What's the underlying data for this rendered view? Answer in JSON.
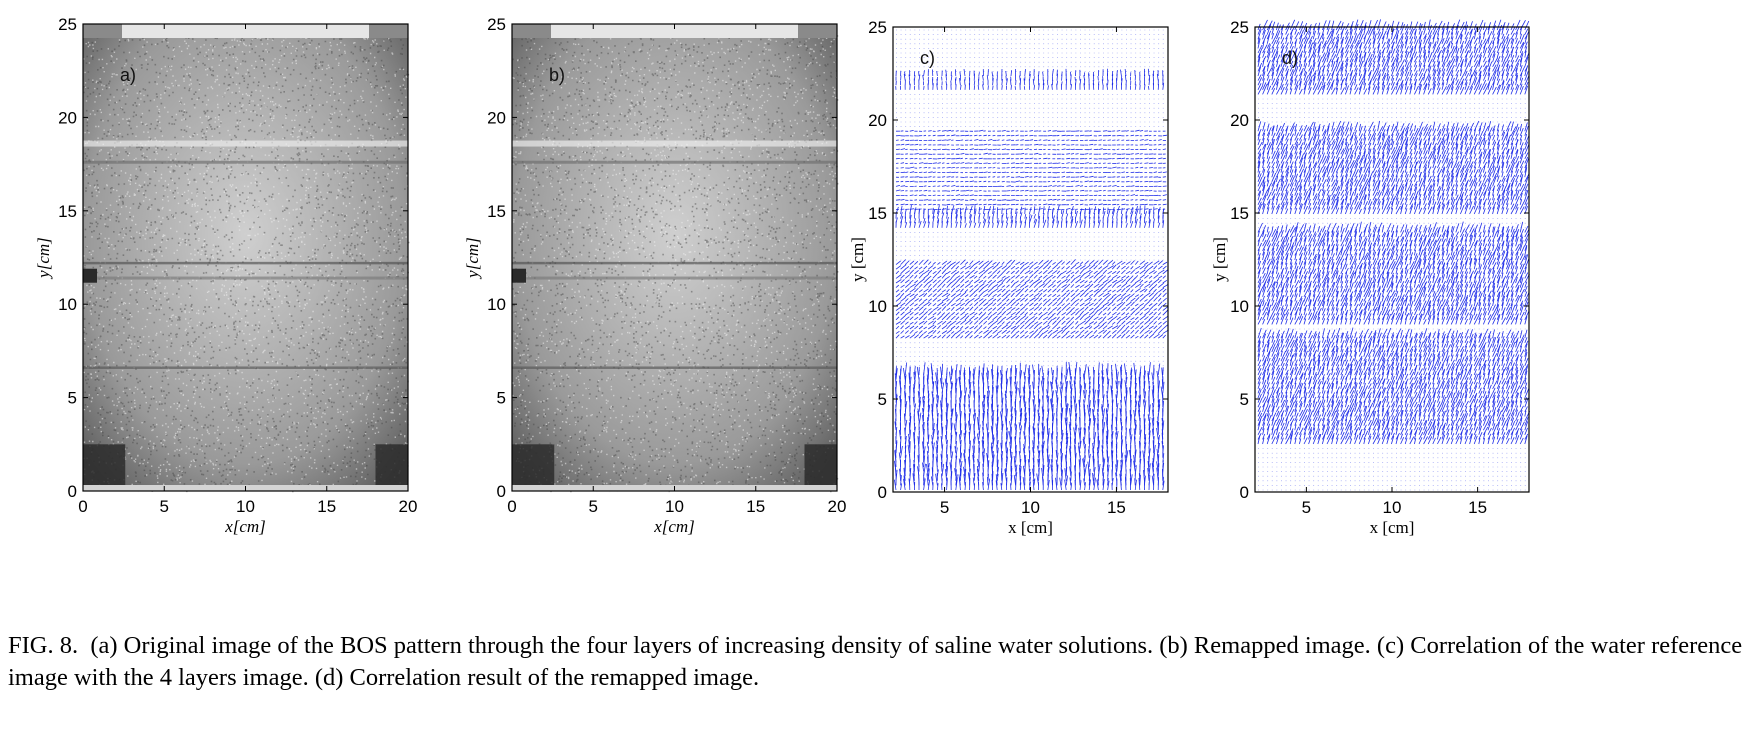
{
  "figure_label": "FIG. 8.",
  "caption_text": "(a) Original image of the BOS pattern through the four layers of increasing density of saline water solutions. (b) Remapped image. (c) Correlation of the water reference image with the 4 layers image. (d) Correlation result of the remapped image.",
  "colors": {
    "vector": "#1f2de8",
    "frame": "#000000"
  },
  "chart_data": [
    {
      "type": "image",
      "panel_label": "a)",
      "xlabel": "x[cm]",
      "ylabel": "y[cm]",
      "xlim": [
        0,
        20
      ],
      "ylim": [
        0,
        25
      ],
      "xticks": [
        "0",
        "5",
        "10",
        "15",
        "20"
      ],
      "yticks": [
        "0",
        "5",
        "10",
        "15",
        "20",
        "25"
      ]
    },
    {
      "type": "image",
      "panel_label": "b)",
      "xlabel": "x[cm]",
      "ylabel": "y[cm]",
      "xlim": [
        0,
        20
      ],
      "ylim": [
        0,
        25
      ],
      "xticks": [
        "0",
        "5",
        "10",
        "15",
        "20"
      ],
      "yticks": [
        "0",
        "5",
        "10",
        "15",
        "20",
        "25"
      ]
    },
    {
      "type": "quiver",
      "panel_label": "c)",
      "xlabel": "x [cm]",
      "ylabel": "y [cm]",
      "xlim": [
        2,
        18
      ],
      "ylim": [
        0,
        25
      ],
      "xticks": [
        "5",
        "10",
        "15"
      ],
      "yticks": [
        "0",
        "5",
        "10",
        "15",
        "20",
        "25"
      ],
      "bands": [
        {
          "y": [
            0,
            6.3
          ],
          "strength": 1.0,
          "angle_deg": 90
        },
        {
          "y": [
            8.2,
            12.4
          ],
          "strength": 0.55,
          "angle_deg": 40
        },
        {
          "y": [
            14.1,
            15.0
          ],
          "strength": 0.7,
          "angle_deg": 80
        },
        {
          "y": [
            15.0,
            19.5
          ],
          "strength": 0.35,
          "angle_deg": 5
        },
        {
          "y": [
            21.4,
            22.4
          ],
          "strength": 0.55,
          "angle_deg": 90
        }
      ]
    },
    {
      "type": "quiver",
      "panel_label": "d)",
      "xlabel": "x [cm]",
      "ylabel": "y [cm]",
      "xlim": [
        2,
        18
      ],
      "ylim": [
        0,
        25
      ],
      "xticks": [
        "5",
        "10",
        "15"
      ],
      "yticks": [
        "0",
        "5",
        "10",
        "15",
        "20",
        "25"
      ],
      "bands": [
        {
          "y": [
            2.5,
            8.3
          ],
          "strength": 0.85,
          "angle_deg": 70
        },
        {
          "y": [
            9.0,
            14.0
          ],
          "strength": 0.85,
          "angle_deg": 70
        },
        {
          "y": [
            14.7,
            19.6
          ],
          "strength": 0.85,
          "angle_deg": 70
        },
        {
          "y": [
            21.3,
            25
          ],
          "strength": 0.85,
          "angle_deg": 70
        }
      ]
    }
  ]
}
